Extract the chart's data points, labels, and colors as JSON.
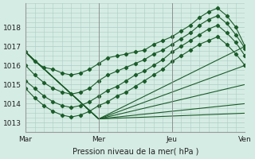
{
  "xlabel": "Pression niveau de la mer( hPa )",
  "xlim": [
    0,
    72
  ],
  "ylim": [
    1012.5,
    1019.2
  ],
  "yticks": [
    1013,
    1014,
    1015,
    1016,
    1017,
    1018
  ],
  "xtick_positions": [
    0,
    24,
    48,
    72
  ],
  "xtick_labels": [
    "Mar",
    "Mer",
    "Jeu",
    "Ven"
  ],
  "bg_color": "#d5ece4",
  "grid_color": "#aeccc4",
  "line_color": "#1a5c28",
  "series": [
    {
      "x": [
        0,
        3,
        6,
        9,
        12,
        15,
        18,
        21,
        24,
        27,
        30,
        33,
        36,
        39,
        42,
        45,
        48,
        51,
        54,
        57,
        60,
        63,
        66,
        69,
        72
      ],
      "y": [
        1016.7,
        1016.2,
        1015.9,
        1015.8,
        1015.6,
        1015.5,
        1015.6,
        1015.8,
        1016.1,
        1016.4,
        1016.5,
        1016.6,
        1016.7,
        1016.8,
        1017.1,
        1017.3,
        1017.5,
        1017.8,
        1018.1,
        1018.5,
        1018.8,
        1019.0,
        1018.6,
        1018.0,
        1017.0
      ],
      "dotted": true
    },
    {
      "x": [
        0,
        3,
        6,
        9,
        12,
        15,
        18,
        21,
        24,
        27,
        30,
        33,
        36,
        39,
        42,
        45,
        48,
        51,
        54,
        57,
        60,
        63,
        66,
        69,
        72
      ],
      "y": [
        1016.0,
        1015.5,
        1015.1,
        1014.8,
        1014.6,
        1014.5,
        1014.6,
        1014.8,
        1015.2,
        1015.5,
        1015.7,
        1015.9,
        1016.1,
        1016.3,
        1016.6,
        1016.8,
        1017.1,
        1017.4,
        1017.7,
        1018.1,
        1018.4,
        1018.6,
        1018.2,
        1017.6,
        1016.9
      ],
      "dotted": true
    },
    {
      "x": [
        0,
        3,
        6,
        9,
        12,
        15,
        18,
        21,
        24,
        27,
        30,
        33,
        36,
        39,
        42,
        45,
        48,
        51,
        54,
        57,
        60,
        63,
        66,
        69,
        72
      ],
      "y": [
        1015.2,
        1014.8,
        1014.4,
        1014.1,
        1013.9,
        1013.8,
        1013.9,
        1014.1,
        1014.4,
        1014.7,
        1014.9,
        1015.2,
        1015.5,
        1015.7,
        1016.0,
        1016.3,
        1016.7,
        1017.0,
        1017.3,
        1017.6,
        1017.9,
        1018.1,
        1017.7,
        1017.2,
        1016.5
      ],
      "dotted": true
    },
    {
      "x": [
        0,
        3,
        6,
        9,
        12,
        15,
        18,
        21,
        24,
        27,
        30,
        33,
        36,
        39,
        42,
        45,
        48,
        51,
        54,
        57,
        60,
        63,
        66,
        69,
        72
      ],
      "y": [
        1014.8,
        1014.3,
        1013.9,
        1013.6,
        1013.4,
        1013.3,
        1013.4,
        1013.6,
        1013.9,
        1014.1,
        1014.4,
        1014.6,
        1014.9,
        1015.2,
        1015.5,
        1015.8,
        1016.2,
        1016.5,
        1016.8,
        1017.1,
        1017.3,
        1017.5,
        1017.1,
        1016.6,
        1016.0
      ],
      "dotted": true
    },
    {
      "x": [
        0,
        24,
        72
      ],
      "y": [
        1016.7,
        1013.2,
        1017.0
      ],
      "dotted": false
    },
    {
      "x": [
        0,
        24,
        72
      ],
      "y": [
        1016.7,
        1013.2,
        1016.0
      ],
      "dotted": false
    },
    {
      "x": [
        0,
        24,
        72
      ],
      "y": [
        1016.7,
        1013.2,
        1015.0
      ],
      "dotted": false
    },
    {
      "x": [
        0,
        24,
        72
      ],
      "y": [
        1016.7,
        1013.2,
        1014.0
      ],
      "dotted": false
    },
    {
      "x": [
        0,
        24,
        72
      ],
      "y": [
        1016.7,
        1013.2,
        1013.5
      ],
      "dotted": false
    }
  ]
}
